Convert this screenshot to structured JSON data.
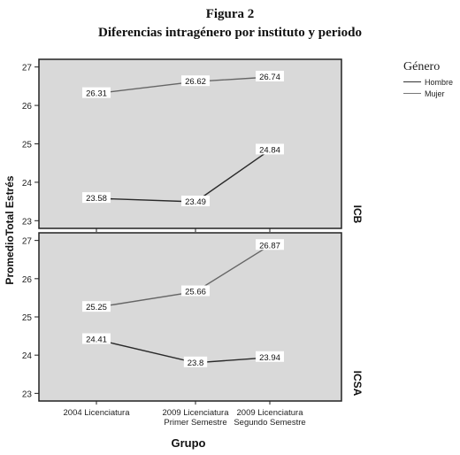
{
  "figure": {
    "label": "Figura 2",
    "caption": "Diferencias intragénero por instituto y periodo"
  },
  "chart_data": {
    "type": "line",
    "title": "Diferencias intragénero por instituto y periodo",
    "xlabel": "Grupo",
    "ylabel": "PromedioTotal Estrés",
    "categories": [
      "2004 Licenciatura",
      "2009 Licenciatura\nPrimer Semestre",
      "2009 Licenciatura\nSegundo Semestre"
    ],
    "legend": {
      "title": "Género",
      "placement": "top-right",
      "entries": [
        "Hombre",
        "Mujer"
      ]
    },
    "series_colors": {
      "Hombre": "#2a2a2a",
      "Mujer": "#666666"
    },
    "panels": [
      {
        "label": "ICB",
        "ylim": [
          22.8,
          27.2
        ],
        "yticks": [
          23,
          24,
          25,
          26,
          27
        ],
        "series": [
          {
            "name": "Mujer",
            "values": [
              26.31,
              26.62,
              26.74
            ]
          },
          {
            "name": "Hombre",
            "values": [
              23.58,
              23.49,
              24.84
            ]
          }
        ]
      },
      {
        "label": "ICSA",
        "ylim": [
          22.8,
          27.2
        ],
        "yticks": [
          23,
          24,
          25,
          26,
          27
        ],
        "series": [
          {
            "name": "Mujer",
            "values": [
              25.25,
              25.66,
              26.87
            ]
          },
          {
            "name": "Hombre",
            "values": [
              24.41,
              23.8,
              23.94
            ]
          }
        ]
      }
    ],
    "grid": false
  }
}
